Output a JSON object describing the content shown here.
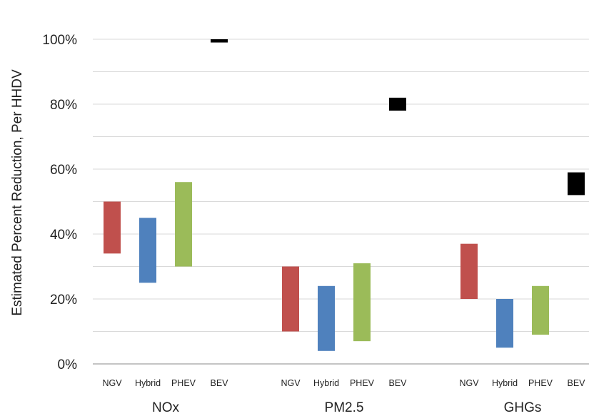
{
  "chart_data": {
    "type": "bar",
    "subtype": "floating-range",
    "ylabel": "Estimated Percent Reduction, Per HHDV",
    "ylim": [
      0,
      100
    ],
    "yticks": [
      "0%",
      "20%",
      "40%",
      "60%",
      "80%",
      "100%"
    ],
    "grid": true,
    "groups": [
      {
        "name": "NOx",
        "bars": [
          {
            "category": "NGV",
            "low": 34,
            "high": 50,
            "color": "#c0504d"
          },
          {
            "category": "Hybrid",
            "low": 25,
            "high": 45,
            "color": "#4f81bd"
          },
          {
            "category": "PHEV",
            "low": 30,
            "high": 56,
            "color": "#9bbb59"
          },
          {
            "category": "BEV",
            "low": 99,
            "high": 100,
            "color": "#000000"
          }
        ]
      },
      {
        "name": "PM2.5",
        "bars": [
          {
            "category": "NGV",
            "low": 10,
            "high": 30,
            "color": "#c0504d"
          },
          {
            "category": "Hybrid",
            "low": 4,
            "high": 24,
            "color": "#4f81bd"
          },
          {
            "category": "PHEV",
            "low": 7,
            "high": 31,
            "color": "#9bbb59"
          },
          {
            "category": "BEV",
            "low": 78,
            "high": 82,
            "color": "#000000"
          }
        ]
      },
      {
        "name": "GHGs",
        "bars": [
          {
            "category": "NGV",
            "low": 20,
            "high": 37,
            "color": "#c0504d"
          },
          {
            "category": "Hybrid",
            "low": 5,
            "high": 20,
            "color": "#4f81bd"
          },
          {
            "category": "PHEV",
            "low": 9,
            "high": 24,
            "color": "#9bbb59"
          },
          {
            "category": "BEV",
            "low": 52,
            "high": 59,
            "color": "#000000"
          }
        ]
      }
    ]
  }
}
